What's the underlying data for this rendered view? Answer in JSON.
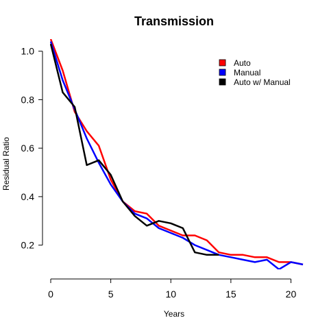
{
  "chart_data": {
    "type": "line",
    "title": "Transmission",
    "xlabel": "Years",
    "ylabel": "Residual Ratio",
    "xlim": [
      0,
      21
    ],
    "ylim": [
      0.1,
      1.05
    ],
    "xticks": [
      0,
      5,
      10,
      15,
      20
    ],
    "yticks": [
      0.2,
      0.4,
      0.6,
      0.8,
      1.0
    ],
    "xtick_labels": [
      "0",
      "5",
      "10",
      "15",
      "20"
    ],
    "ytick_labels": [
      "0.2",
      "0.4",
      "0.6",
      "0.8",
      "1.0"
    ],
    "grid": false,
    "legend_position": "top-right",
    "series": [
      {
        "name": "Auto",
        "color": "#ff0000",
        "x": [
          0,
          1,
          2,
          3,
          4,
          5,
          6,
          7,
          8,
          9,
          10,
          11,
          12,
          13,
          14,
          15,
          16,
          17,
          18,
          19,
          20,
          21
        ],
        "y": [
          1.05,
          0.92,
          0.75,
          0.67,
          0.61,
          0.47,
          0.38,
          0.34,
          0.33,
          0.28,
          0.26,
          0.24,
          0.24,
          0.22,
          0.17,
          0.16,
          0.16,
          0.15,
          0.15,
          0.13,
          0.13,
          0.12
        ]
      },
      {
        "name": "Manual",
        "color": "#0000ff",
        "x": [
          0,
          1,
          2,
          3,
          4,
          5,
          6,
          7,
          8,
          9,
          10,
          11,
          12,
          13,
          14,
          15,
          16,
          17,
          18,
          19,
          20,
          21
        ],
        "y": [
          1.04,
          0.88,
          0.76,
          0.64,
          0.54,
          0.45,
          0.38,
          0.33,
          0.31,
          0.27,
          0.25,
          0.23,
          0.2,
          0.18,
          0.16,
          0.15,
          0.14,
          0.13,
          0.14,
          0.1,
          0.13,
          0.12
        ]
      },
      {
        "name": "Auto w/ Manual",
        "color": "#000000",
        "x": [
          0,
          1,
          2,
          3,
          4,
          5,
          6,
          7,
          8,
          9,
          10,
          11,
          12,
          13,
          14
        ],
        "y": [
          1.03,
          0.83,
          0.77,
          0.53,
          0.55,
          0.49,
          0.38,
          0.32,
          0.28,
          0.3,
          0.29,
          0.27,
          0.17,
          0.16,
          0.16
        ]
      }
    ]
  }
}
